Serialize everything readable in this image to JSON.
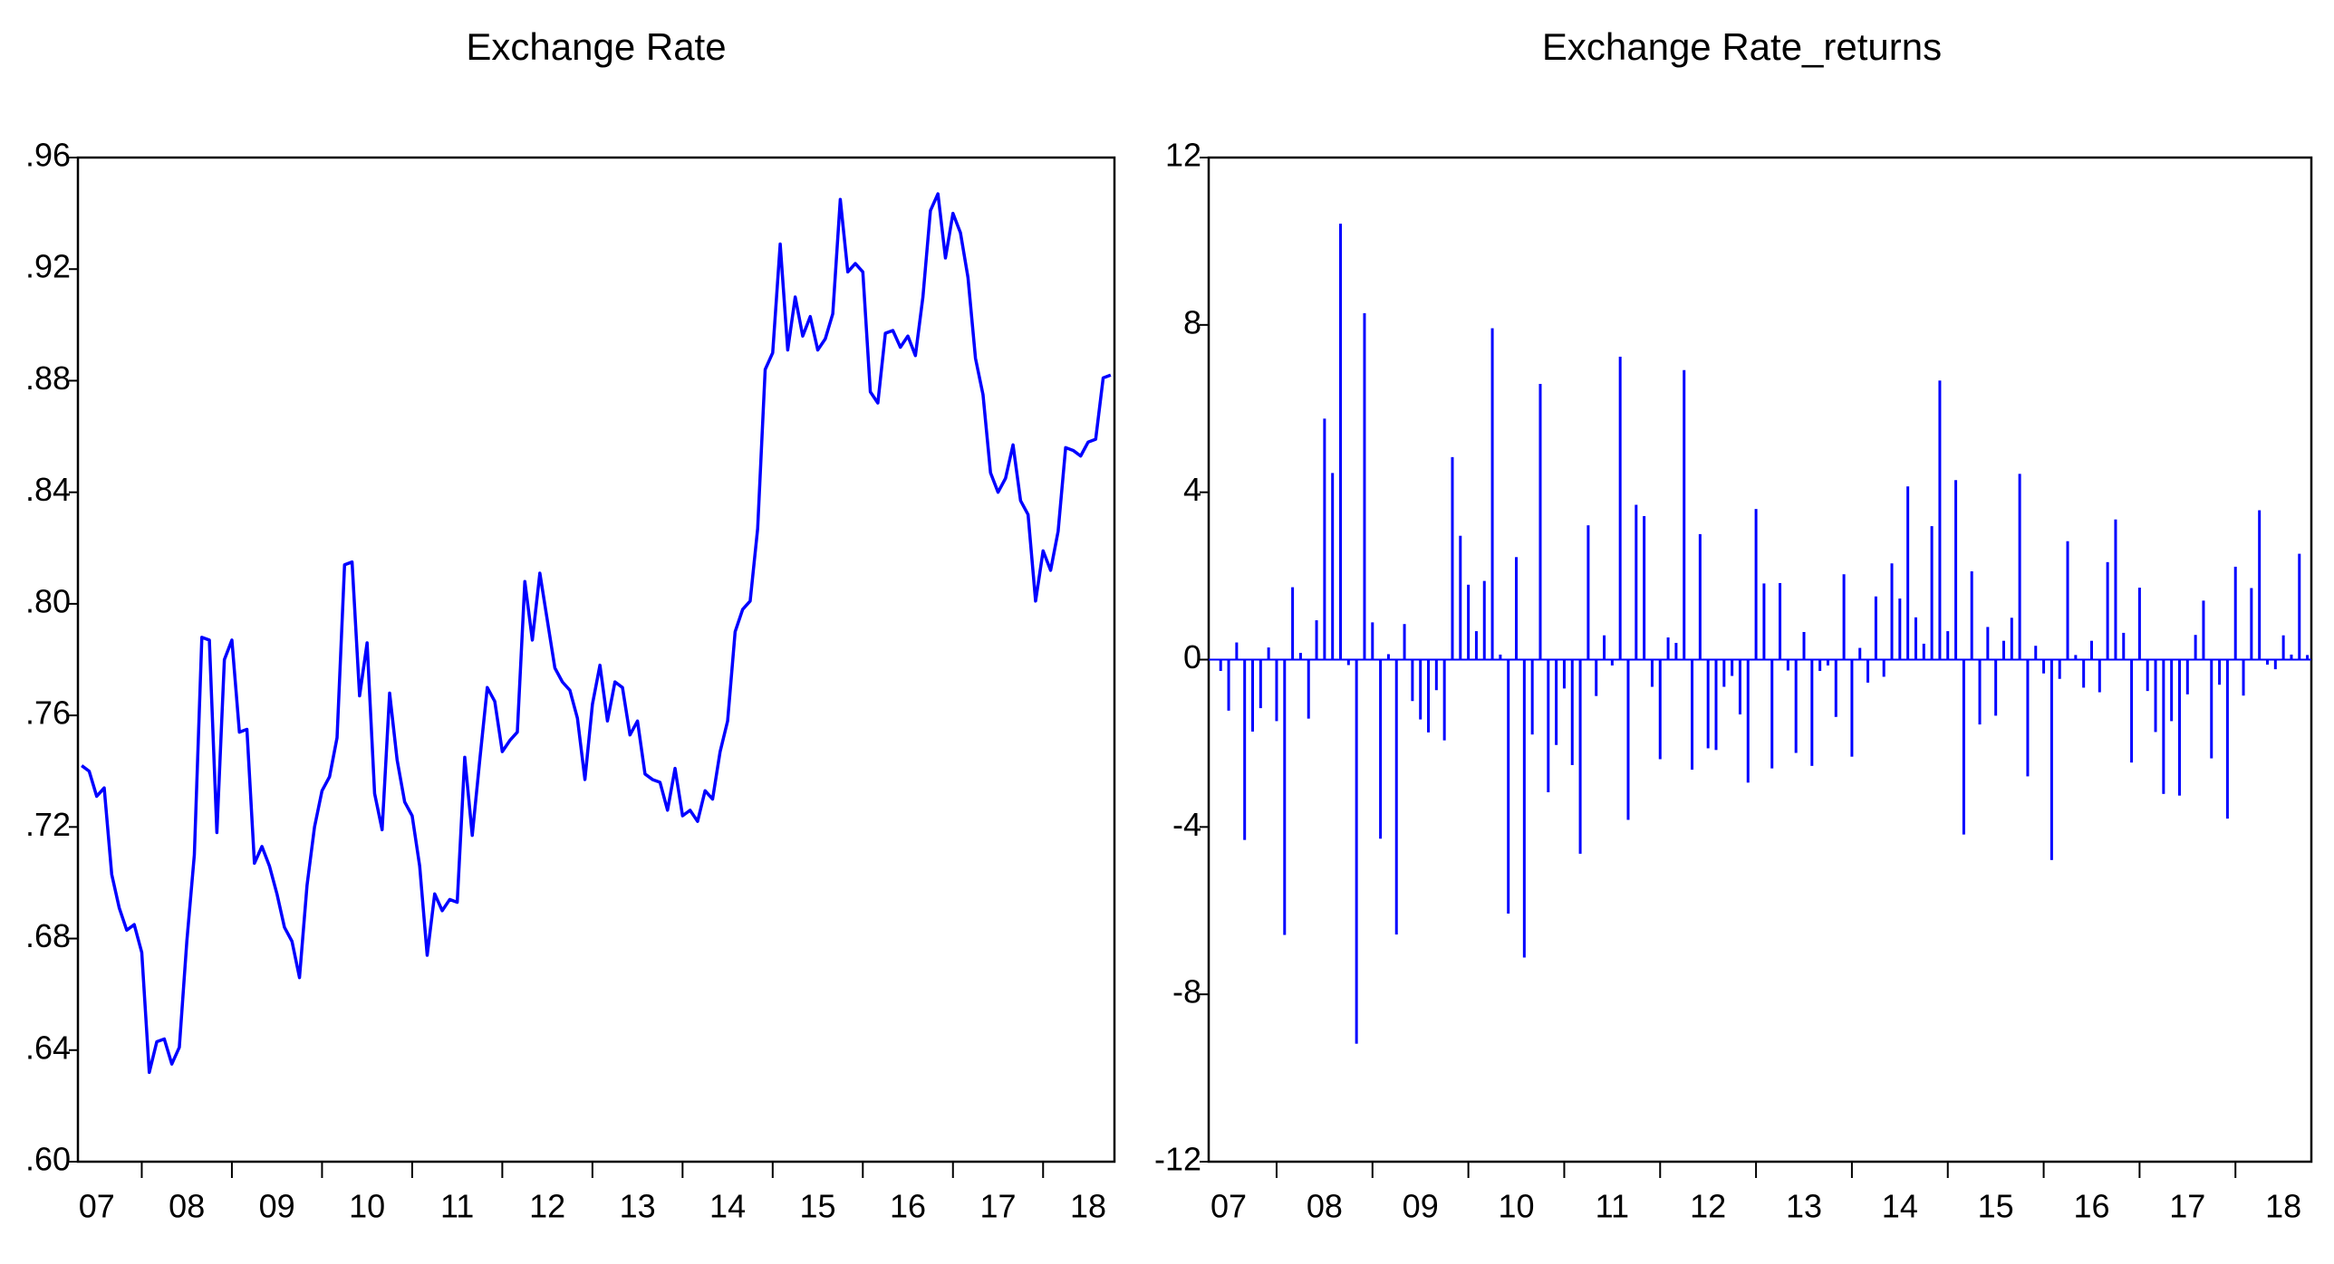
{
  "chart_data": [
    {
      "type": "line",
      "title": "Exchange Rate",
      "categories": [
        null,
        null,
        "07",
        null,
        null,
        null,
        null,
        null,
        null,
        null,
        null,
        null,
        null,
        null,
        "08",
        null,
        null,
        null,
        null,
        null,
        null,
        null,
        null,
        null,
        null,
        null,
        "09",
        null,
        null,
        null,
        null,
        null,
        null,
        null,
        null,
        null,
        null,
        null,
        "10",
        null,
        null,
        null,
        null,
        null,
        null,
        null,
        null,
        null,
        null,
        null,
        "11",
        null,
        null,
        null,
        null,
        null,
        null,
        null,
        null,
        null,
        null,
        null,
        "12",
        null,
        null,
        null,
        null,
        null,
        null,
        null,
        null,
        null,
        null,
        null,
        "13",
        null,
        null,
        null,
        null,
        null,
        null,
        null,
        null,
        null,
        null,
        null,
        "14",
        null,
        null,
        null,
        null,
        null,
        null,
        null,
        null,
        null,
        null,
        null,
        "15",
        null,
        null,
        null,
        null,
        null,
        null,
        null,
        null,
        null,
        null,
        null,
        "16",
        null,
        null,
        null,
        null,
        null,
        null,
        null,
        null,
        null,
        null,
        null,
        "17",
        null,
        null,
        null,
        null,
        null,
        null,
        null,
        null,
        null,
        null,
        null,
        "18",
        null,
        null,
        null
      ],
      "series": [
        {
          "name": "Exchange Rate",
          "color": "#0000ff",
          "values": [
            0.742,
            0.74,
            0.731,
            0.734,
            0.703,
            0.691,
            0.683,
            0.685,
            0.675,
            0.632,
            0.643,
            0.644,
            0.635,
            0.641,
            0.679,
            0.71,
            0.788,
            0.787,
            0.718,
            0.78,
            0.787,
            0.754,
            0.755,
            0.707,
            0.713,
            0.706,
            0.696,
            0.684,
            0.679,
            0.666,
            0.699,
            0.72,
            0.733,
            0.738,
            0.752,
            0.814,
            0.815,
            0.767,
            0.786,
            0.732,
            0.719,
            0.768,
            0.744,
            0.729,
            0.724,
            0.706,
            0.674,
            0.696,
            0.69,
            0.694,
            0.693,
            0.745,
            0.717,
            0.744,
            0.77,
            0.765,
            0.747,
            0.751,
            0.754,
            0.808,
            0.787,
            0.811,
            0.794,
            0.777,
            0.772,
            0.769,
            0.759,
            0.737,
            0.764,
            0.778,
            0.758,
            0.772,
            0.77,
            0.753,
            0.758,
            0.739,
            0.737,
            0.736,
            0.726,
            0.741,
            0.724,
            0.726,
            0.722,
            0.733,
            0.73,
            0.747,
            0.758,
            0.79,
            0.798,
            0.801,
            0.827,
            0.884,
            0.89,
            0.929,
            0.891,
            0.91,
            0.896,
            0.903,
            0.891,
            0.895,
            0.904,
            0.945,
            0.919,
            0.922,
            0.919,
            0.876,
            0.872,
            0.897,
            0.898,
            0.892,
            0.896,
            0.889,
            0.91,
            0.941,
            0.947,
            0.924,
            0.94,
            0.933,
            0.917,
            0.888,
            0.875,
            0.847,
            0.84,
            0.845,
            0.857,
            0.837,
            0.832,
            0.801,
            0.819,
            0.812,
            0.826,
            0.856,
            0.855,
            0.853,
            0.858,
            0.859,
            0.881,
            0.882
          ]
        }
      ],
      "ylim": [
        0.6,
        0.96
      ],
      "yticks": [
        {
          "value": 0.6,
          "label": ".60"
        },
        {
          "value": 0.64,
          "label": ".64"
        },
        {
          "value": 0.68,
          "label": ".68"
        },
        {
          "value": 0.72,
          "label": ".72"
        },
        {
          "value": 0.76,
          "label": ".76"
        },
        {
          "value": 0.8,
          "label": ".80"
        },
        {
          "value": 0.84,
          "label": ".84"
        },
        {
          "value": 0.88,
          "label": ".88"
        },
        {
          "value": 0.92,
          "label": ".92"
        },
        {
          "value": 0.96,
          "label": ".96"
        }
      ],
      "grid": false
    },
    {
      "type": "bar",
      "title": "Exchange Rate_returns",
      "categories": [
        null,
        null,
        "07",
        null,
        null,
        null,
        null,
        null,
        null,
        null,
        null,
        null,
        null,
        null,
        "08",
        null,
        null,
        null,
        null,
        null,
        null,
        null,
        null,
        null,
        null,
        null,
        "09",
        null,
        null,
        null,
        null,
        null,
        null,
        null,
        null,
        null,
        null,
        null,
        "10",
        null,
        null,
        null,
        null,
        null,
        null,
        null,
        null,
        null,
        null,
        null,
        "11",
        null,
        null,
        null,
        null,
        null,
        null,
        null,
        null,
        null,
        null,
        null,
        "12",
        null,
        null,
        null,
        null,
        null,
        null,
        null,
        null,
        null,
        null,
        null,
        "13",
        null,
        null,
        null,
        null,
        null,
        null,
        null,
        null,
        null,
        null,
        null,
        "14",
        null,
        null,
        null,
        null,
        null,
        null,
        null,
        null,
        null,
        null,
        null,
        "15",
        null,
        null,
        null,
        null,
        null,
        null,
        null,
        null,
        null,
        null,
        null,
        "16",
        null,
        null,
        null,
        null,
        null,
        null,
        null,
        null,
        null,
        null,
        null,
        "17",
        null,
        null,
        null,
        null,
        null,
        null,
        null,
        null,
        null,
        null,
        null,
        "18",
        null,
        null,
        null
      ],
      "series": [
        {
          "name": "Exchange Rate_returns",
          "color": "#0000ff",
          "values": [
            null,
            -0.27,
            -1.22,
            0.41,
            -4.31,
            -1.72,
            -1.16,
            0.29,
            -1.47,
            -6.58,
            1.73,
            0.16,
            -1.41,
            0.94,
            5.76,
            4.46,
            10.42,
            -0.13,
            -9.18,
            8.28,
            0.89,
            -4.28,
            0.13,
            -6.57,
            0.85,
            -0.99,
            -1.43,
            -1.74,
            -0.73,
            -1.93,
            4.84,
            2.96,
            1.79,
            0.68,
            1.88,
            7.92,
            0.12,
            -6.07,
            2.45,
            -7.12,
            -1.79,
            6.59,
            -3.17,
            -2.04,
            -0.69,
            -2.52,
            -4.64,
            3.21,
            -0.87,
            0.58,
            -0.14,
            7.24,
            -3.83,
            3.7,
            3.43,
            -0.65,
            -2.38,
            0.53,
            0.4,
            6.92,
            -2.63,
            3.0,
            -2.12,
            -2.16,
            -0.65,
            -0.39,
            -1.31,
            -2.94,
            3.6,
            1.82,
            -2.6,
            1.83,
            -0.26,
            -2.23,
            0.66,
            -2.54,
            -0.27,
            -0.14,
            -1.37,
            2.04,
            -2.32,
            0.28,
            -0.55,
            1.51,
            -0.41,
            2.3,
            1.46,
            4.14,
            1.01,
            0.38,
            3.19,
            6.67,
            0.68,
            4.29,
            -4.18,
            2.11,
            -1.55,
            0.78,
            -1.34,
            0.45,
            1.0,
            4.44,
            -2.79,
            0.33,
            -0.33,
            -4.79,
            -0.46,
            2.83,
            0.11,
            -0.67,
            0.45,
            -0.78,
            2.33,
            3.35,
            0.64,
            -2.46,
            1.72,
            -0.75,
            -1.73,
            -3.21,
            -1.47,
            -3.25,
            -0.83,
            0.59,
            1.41,
            -2.36,
            -0.6,
            -3.8,
            2.22,
            -0.86,
            1.71,
            3.57,
            -0.12,
            -0.23,
            0.58,
            0.12,
            2.53,
            0.11
          ]
        }
      ],
      "ylim": [
        -12,
        12
      ],
      "yticks": [
        -12,
        -8,
        -4,
        0,
        4,
        8,
        12
      ],
      "grid": false
    }
  ]
}
